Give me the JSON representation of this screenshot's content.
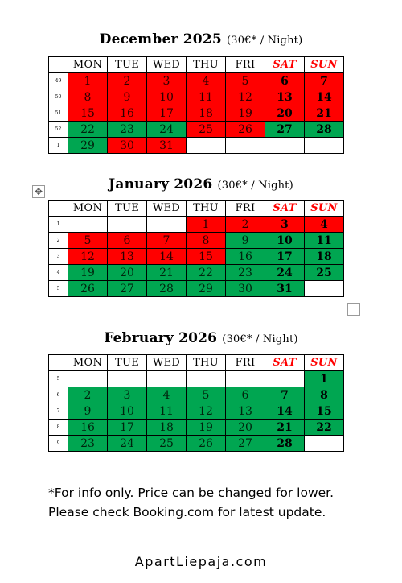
{
  "weekdays": [
    "MON",
    "TUE",
    "WED",
    "THU",
    "FRI",
    "SAT",
    "SUN"
  ],
  "weekend_color": "#ff0000",
  "status_colors": {
    "booked": "#ff0000",
    "available": "#00a651"
  },
  "months": [
    {
      "title": "December 2025",
      "price": "(30€* / Night)",
      "weeks": [
        {
          "week": "49",
          "days": [
            {
              "d": "1",
              "s": "booked"
            },
            {
              "d": "2",
              "s": "booked"
            },
            {
              "d": "3",
              "s": "booked"
            },
            {
              "d": "4",
              "s": "booked"
            },
            {
              "d": "5",
              "s": "booked"
            },
            {
              "d": "6",
              "s": "booked"
            },
            {
              "d": "7",
              "s": "booked"
            }
          ]
        },
        {
          "week": "50",
          "days": [
            {
              "d": "8",
              "s": "booked"
            },
            {
              "d": "9",
              "s": "booked"
            },
            {
              "d": "10",
              "s": "booked"
            },
            {
              "d": "11",
              "s": "booked"
            },
            {
              "d": "12",
              "s": "booked"
            },
            {
              "d": "13",
              "s": "booked"
            },
            {
              "d": "14",
              "s": "booked"
            }
          ]
        },
        {
          "week": "51",
          "days": [
            {
              "d": "15",
              "s": "booked"
            },
            {
              "d": "16",
              "s": "booked"
            },
            {
              "d": "17",
              "s": "booked"
            },
            {
              "d": "18",
              "s": "booked"
            },
            {
              "d": "19",
              "s": "booked"
            },
            {
              "d": "20",
              "s": "booked"
            },
            {
              "d": "21",
              "s": "booked"
            }
          ]
        },
        {
          "week": "52",
          "days": [
            {
              "d": "22",
              "s": "available"
            },
            {
              "d": "23",
              "s": "available"
            },
            {
              "d": "24",
              "s": "available"
            },
            {
              "d": "25",
              "s": "booked"
            },
            {
              "d": "26",
              "s": "booked"
            },
            {
              "d": "27",
              "s": "available"
            },
            {
              "d": "28",
              "s": "available"
            }
          ]
        },
        {
          "week": "1",
          "days": [
            {
              "d": "29",
              "s": "available"
            },
            {
              "d": "30",
              "s": "booked"
            },
            {
              "d": "31",
              "s": "booked"
            },
            {
              "d": "",
              "s": "none"
            },
            {
              "d": "",
              "s": "none"
            },
            {
              "d": "",
              "s": "none"
            },
            {
              "d": "",
              "s": "none"
            }
          ]
        }
      ]
    },
    {
      "title": "January 2026",
      "price": "(30€* / Night)",
      "weeks": [
        {
          "week": "1",
          "days": [
            {
              "d": "",
              "s": "none"
            },
            {
              "d": "",
              "s": "none"
            },
            {
              "d": "",
              "s": "none"
            },
            {
              "d": "1",
              "s": "booked"
            },
            {
              "d": "2",
              "s": "booked"
            },
            {
              "d": "3",
              "s": "booked"
            },
            {
              "d": "4",
              "s": "booked"
            }
          ]
        },
        {
          "week": "2",
          "days": [
            {
              "d": "5",
              "s": "booked"
            },
            {
              "d": "6",
              "s": "booked"
            },
            {
              "d": "7",
              "s": "booked"
            },
            {
              "d": "8",
              "s": "booked"
            },
            {
              "d": "9",
              "s": "available"
            },
            {
              "d": "10",
              "s": "available"
            },
            {
              "d": "11",
              "s": "available"
            }
          ]
        },
        {
          "week": "3",
          "days": [
            {
              "d": "12",
              "s": "booked"
            },
            {
              "d": "13",
              "s": "booked"
            },
            {
              "d": "14",
              "s": "booked"
            },
            {
              "d": "15",
              "s": "booked"
            },
            {
              "d": "16",
              "s": "available"
            },
            {
              "d": "17",
              "s": "available"
            },
            {
              "d": "18",
              "s": "available"
            }
          ]
        },
        {
          "week": "4",
          "days": [
            {
              "d": "19",
              "s": "available"
            },
            {
              "d": "20",
              "s": "available"
            },
            {
              "d": "21",
              "s": "available"
            },
            {
              "d": "22",
              "s": "available"
            },
            {
              "d": "23",
              "s": "available"
            },
            {
              "d": "24",
              "s": "available"
            },
            {
              "d": "25",
              "s": "available"
            }
          ]
        },
        {
          "week": "5",
          "days": [
            {
              "d": "26",
              "s": "available"
            },
            {
              "d": "27",
              "s": "available"
            },
            {
              "d": "28",
              "s": "available"
            },
            {
              "d": "29",
              "s": "available"
            },
            {
              "d": "30",
              "s": "available"
            },
            {
              "d": "31",
              "s": "available"
            },
            {
              "d": "",
              "s": "none"
            }
          ]
        }
      ]
    },
    {
      "title": "February 2026",
      "price": "(30€* / Night)",
      "weeks": [
        {
          "week": "5",
          "days": [
            {
              "d": "",
              "s": "none"
            },
            {
              "d": "",
              "s": "none"
            },
            {
              "d": "",
              "s": "none"
            },
            {
              "d": "",
              "s": "none"
            },
            {
              "d": "",
              "s": "none"
            },
            {
              "d": "",
              "s": "none"
            },
            {
              "d": "1",
              "s": "available"
            }
          ]
        },
        {
          "week": "6",
          "days": [
            {
              "d": "2",
              "s": "available"
            },
            {
              "d": "3",
              "s": "available"
            },
            {
              "d": "4",
              "s": "available"
            },
            {
              "d": "5",
              "s": "available"
            },
            {
              "d": "6",
              "s": "available"
            },
            {
              "d": "7",
              "s": "available"
            },
            {
              "d": "8",
              "s": "available"
            }
          ]
        },
        {
          "week": "7",
          "days": [
            {
              "d": "9",
              "s": "available"
            },
            {
              "d": "10",
              "s": "available"
            },
            {
              "d": "11",
              "s": "available"
            },
            {
              "d": "12",
              "s": "available"
            },
            {
              "d": "13",
              "s": "available"
            },
            {
              "d": "14",
              "s": "available"
            },
            {
              "d": "15",
              "s": "available"
            }
          ]
        },
        {
          "week": "8",
          "days": [
            {
              "d": "16",
              "s": "available"
            },
            {
              "d": "17",
              "s": "available"
            },
            {
              "d": "18",
              "s": "available"
            },
            {
              "d": "19",
              "s": "available"
            },
            {
              "d": "20",
              "s": "available"
            },
            {
              "d": "21",
              "s": "available"
            },
            {
              "d": "22",
              "s": "available"
            }
          ]
        },
        {
          "week": "9",
          "days": [
            {
              "d": "23",
              "s": "available"
            },
            {
              "d": "24",
              "s": "available"
            },
            {
              "d": "25",
              "s": "available"
            },
            {
              "d": "26",
              "s": "available"
            },
            {
              "d": "27",
              "s": "available"
            },
            {
              "d": "28",
              "s": "available"
            },
            {
              "d": "",
              "s": "none"
            }
          ]
        }
      ]
    }
  ],
  "note": {
    "line1": "*For info only. Price can be changed for lower.",
    "line2": "Please check Booking.com for latest update."
  },
  "footer": "ApartLiepaja.com",
  "icons": {
    "move": "move-arrows-icon",
    "resize": "table-resize-handle-icon"
  }
}
